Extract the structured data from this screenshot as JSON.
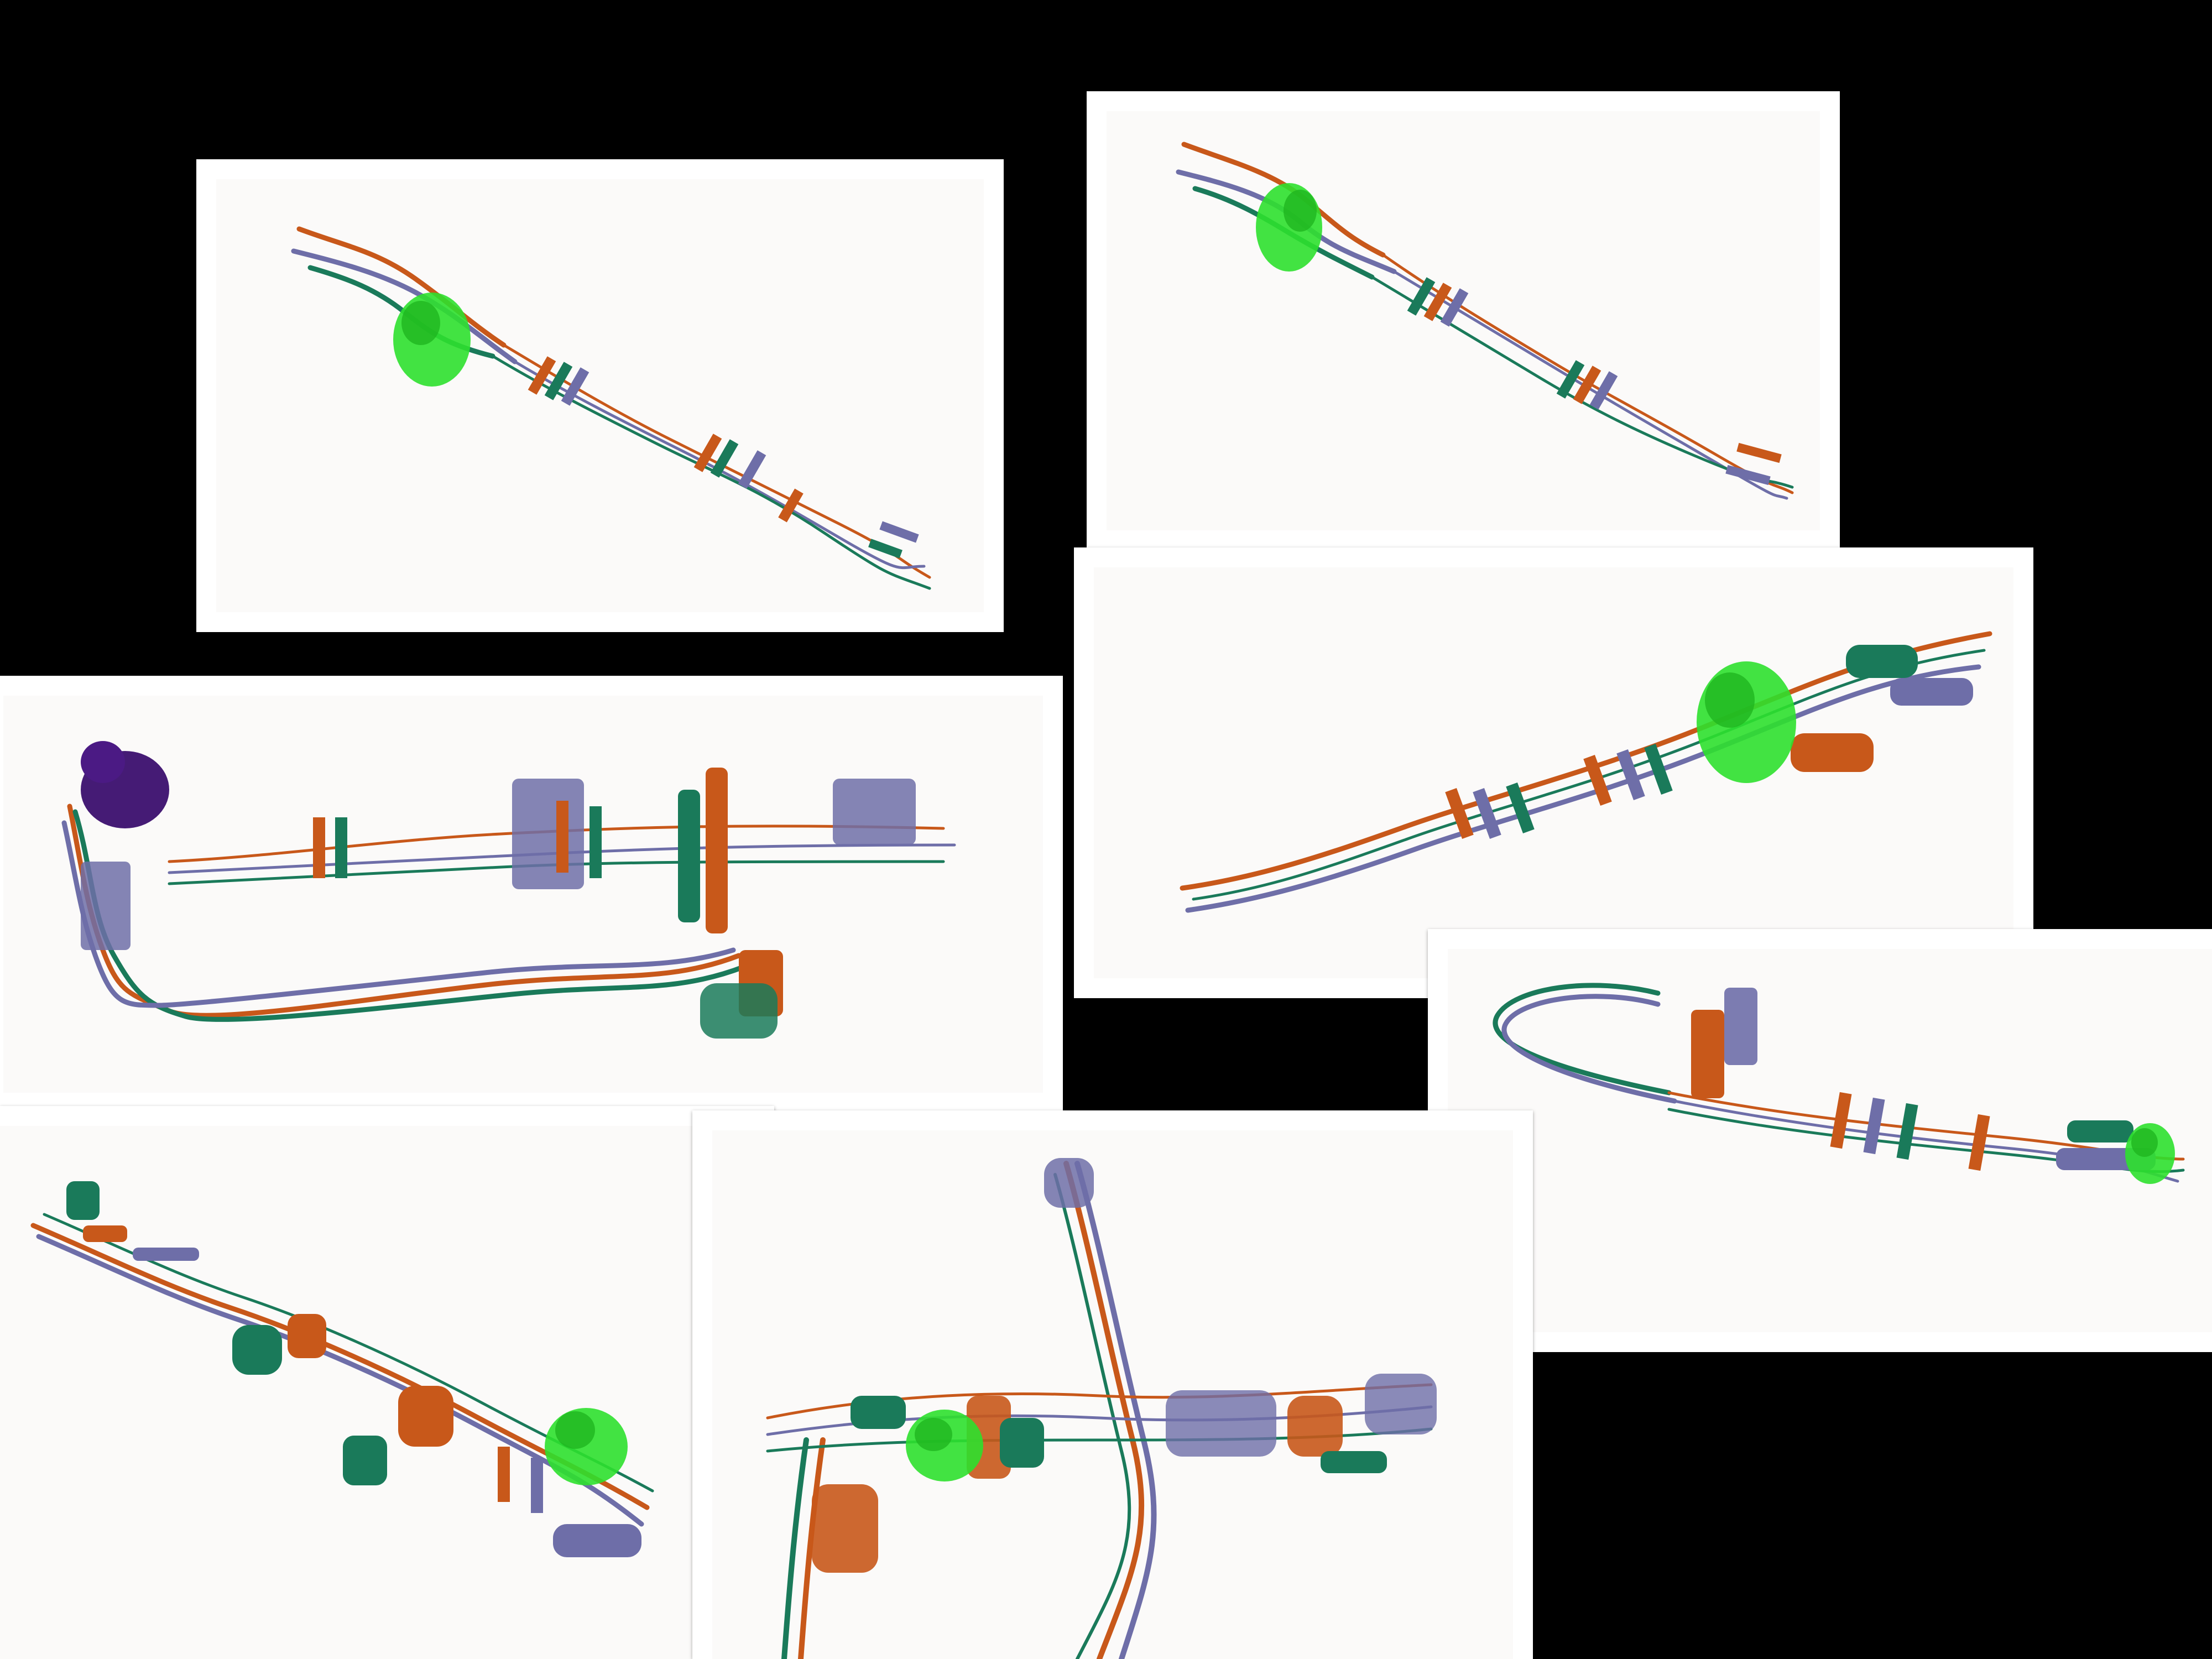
{
  "colors": {
    "background": "#000000",
    "card_border": "#ffffff",
    "card_fill": "#fbfaf9",
    "chain_orange": "#c8581a",
    "chain_green": "#1a7a5a",
    "chain_purple": "#6e6ea8",
    "ligand_green": "#2ee02e",
    "ligand_purple": "#3b0f6e"
  },
  "panels": [
    {
      "id": "panel-1",
      "ligand": "ligand_green",
      "shape": "diagonal-filament"
    },
    {
      "id": "panel-2",
      "ligand": "ligand_green",
      "shape": "diagonal-filament"
    },
    {
      "id": "panel-3",
      "ligand": "ligand_purple",
      "shape": "filament-with-coiled-coil-loop"
    },
    {
      "id": "panel-4",
      "ligand": "ligand_green",
      "shape": "rising-filament"
    },
    {
      "id": "panel-5",
      "ligand": "ligand_green",
      "shape": "looped-filament"
    },
    {
      "id": "panel-6",
      "ligand": "ligand_green",
      "shape": "descending-filament"
    },
    {
      "id": "panel-7",
      "ligand": "ligand_green",
      "shape": "crossed-filaments"
    }
  ]
}
